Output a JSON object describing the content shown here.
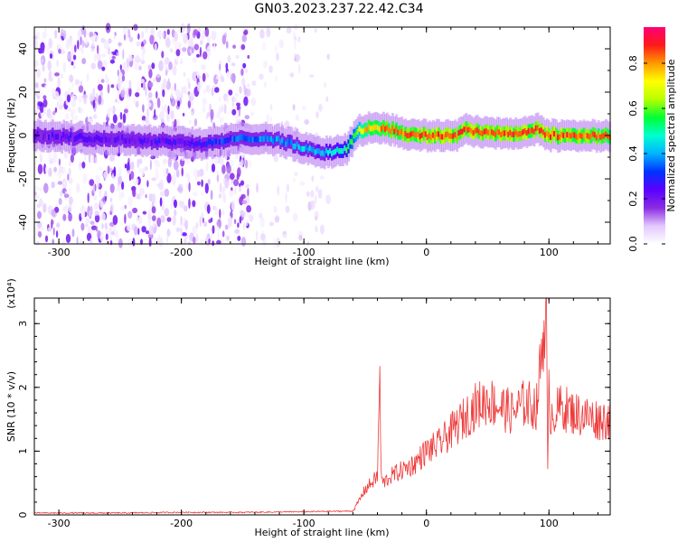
{
  "title": "GN03.2023.237.22.42.C34",
  "colors": {
    "background": "#ffffff",
    "snr_line": "#ee3b3b",
    "axis": "#000000",
    "colormap": [
      "#ffffff",
      "#e2c8ff",
      "#8a2be2",
      "#5a00ff",
      "#0033ff",
      "#00b4ff",
      "#00ffd0",
      "#00ff33",
      "#b8ff00",
      "#ffff00",
      "#ff9900",
      "#ff1a1a",
      "#ff0077"
    ]
  },
  "chart_data": [
    {
      "type": "heatmap",
      "xlabel": "Height of straight line (km)",
      "ylabel": "Frequency (Hz)",
      "xlim": [
        -320,
        150
      ],
      "ylim": [
        -50,
        50
      ],
      "xticks": [
        -300,
        -200,
        -100,
        0,
        100
      ],
      "yticks": [
        -40,
        -20,
        0,
        20,
        40
      ],
      "colorbar": {
        "label": "Normalized spectral amplitude",
        "range": [
          0,
          0.96
        ],
        "ticks": [
          "0.0",
          "0.2",
          "0.4",
          "0.6",
          "0.8"
        ],
        "tick_values": [
          0,
          0.2,
          0.4,
          0.6,
          0.8
        ]
      },
      "ridge_frequency": {
        "x": [
          -320,
          -200,
          -180,
          -160,
          -140,
          -120,
          -100,
          -80,
          -65,
          -55,
          -45,
          -30,
          -10,
          10,
          25,
          30,
          40,
          60,
          80,
          90,
          100,
          120,
          150
        ],
        "y": [
          0,
          -3,
          -4,
          -2,
          -1,
          -2,
          -6,
          -8,
          -6,
          2,
          4,
          3,
          0,
          0,
          0,
          3,
          2,
          1,
          1,
          3,
          0,
          0,
          0
        ]
      },
      "ridge_amplitude": {
        "x": [
          -320,
          -200,
          -150,
          -100,
          -80,
          -60,
          -50,
          -30,
          0,
          50,
          100,
          150
        ],
        "y": [
          0.22,
          0.25,
          0.35,
          0.42,
          0.45,
          0.6,
          0.8,
          0.85,
          0.88,
          0.88,
          0.88,
          0.85
        ]
      },
      "noise_until": -145,
      "sparse_noise_until": -80
    },
    {
      "type": "line",
      "xlabel": "Height of straight line (km)",
      "ylabel": "SNR (10 * v/v)",
      "y_multiplier": "(x10⁴)",
      "xlim": [
        -320,
        150
      ],
      "ylim": [
        0,
        3.4
      ],
      "xticks": [
        -300,
        -200,
        -100,
        0,
        100
      ],
      "yticks": [
        0,
        1,
        2,
        3
      ],
      "series": [
        {
          "x": [
            -320,
            -250,
            -200,
            -150,
            -100,
            -60,
            -50,
            -45,
            -40,
            -38,
            -37,
            -35,
            -30,
            -20,
            -10,
            0,
            10,
            20,
            30,
            40,
            50,
            60,
            70,
            80,
            90,
            98,
            99,
            100,
            101,
            105,
            110,
            120,
            130,
            140,
            150
          ],
          "y": [
            0.02,
            0.02,
            0.03,
            0.03,
            0.04,
            0.05,
            0.4,
            0.5,
            0.6,
            2.2,
            0.6,
            0.5,
            0.6,
            0.7,
            0.8,
            1.0,
            1.1,
            1.3,
            1.5,
            1.7,
            1.8,
            1.7,
            1.6,
            1.75,
            1.7,
            3.4,
            0.6,
            1.9,
            1.6,
            1.6,
            1.7,
            1.6,
            1.55,
            1.5,
            1.5
          ]
        }
      ]
    }
  ]
}
